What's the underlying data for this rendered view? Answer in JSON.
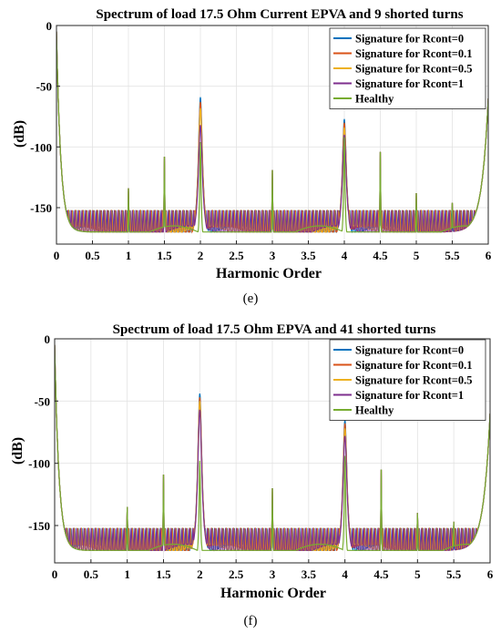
{
  "chart_data": [
    {
      "type": "line",
      "title": "Spectrum of load 17.5 Ohm Current EPVA and 9 shorted turns",
      "caption": "(e)",
      "xlabel": "Harmonic Order",
      "ylabel": "(dB)",
      "xlim": [
        0,
        6
      ],
      "ylim": [
        -180,
        0
      ],
      "xticks": [
        "0",
        "0.5",
        "1",
        "1.5",
        "2",
        "2.5",
        "3",
        "3.5",
        "4",
        "4.5",
        "5",
        "5.5",
        "6"
      ],
      "yticks": [
        "0",
        "-50",
        "-100",
        "-150"
      ],
      "grid": true,
      "legend": "top-right",
      "floor": -150,
      "peaks_common": [
        [
          1,
          -134
        ],
        [
          1.5,
          -108
        ],
        [
          3,
          -119
        ],
        [
          4.5,
          -104
        ],
        [
          5,
          -138
        ],
        [
          5.5,
          -146
        ]
      ],
      "series": [
        {
          "name": "Signature for Rcont=0",
          "color": "#0072BD",
          "peaks": [
            [
              2,
              -59
            ],
            [
              4,
              -77
            ]
          ]
        },
        {
          "name": "Signature for Rcont=0.1",
          "color": "#D95319",
          "peaks": [
            [
              2,
              -63
            ],
            [
              4,
              -80
            ]
          ]
        },
        {
          "name": "Signature for Rcont=0.5",
          "color": "#EDB120",
          "peaks": [
            [
              2,
              -68
            ],
            [
              4,
              -84
            ]
          ]
        },
        {
          "name": "Signature for Rcont=1",
          "color": "#7E2F8E",
          "peaks": [
            [
              2,
              -82
            ],
            [
              4,
              -90
            ]
          ]
        },
        {
          "name": "Healthy",
          "color": "#77AC30",
          "peaks": [
            [
              2,
              -96
            ],
            [
              4,
              -92
            ]
          ]
        }
      ]
    },
    {
      "type": "line",
      "title": "Spectrum of load 17.5 Ohm EPVA and 41 shorted turns",
      "caption": "(f)",
      "xlabel": "Harmonic Order",
      "ylabel": "(dB)",
      "xlim": [
        0,
        6
      ],
      "ylim": [
        -180,
        0
      ],
      "xticks": [
        "0",
        "0.5",
        "1",
        "1.5",
        "2",
        "2.5",
        "3",
        "3.5",
        "4",
        "4.5",
        "5",
        "5.5",
        "6"
      ],
      "yticks": [
        "0",
        "-50",
        "-100",
        "-150"
      ],
      "grid": true,
      "legend": "top-right",
      "floor": -150,
      "peaks_common": [
        [
          1,
          -135
        ],
        [
          1.5,
          -109
        ],
        [
          3,
          -120
        ],
        [
          4.5,
          -105
        ],
        [
          5,
          -140
        ],
        [
          5.5,
          -147
        ]
      ],
      "series": [
        {
          "name": "Signature for Rcont=0",
          "color": "#0072BD",
          "peaks": [
            [
              2,
              -44
            ],
            [
              4,
              -65
            ]
          ]
        },
        {
          "name": "Signature for Rcont=0.1",
          "color": "#D95319",
          "peaks": [
            [
              2,
              -47
            ],
            [
              4,
              -68
            ]
          ]
        },
        {
          "name": "Signature for Rcont=0.5",
          "color": "#EDB120",
          "peaks": [
            [
              2,
              -50
            ],
            [
              4,
              -72
            ]
          ]
        },
        {
          "name": "Signature for Rcont=1",
          "color": "#7E2F8E",
          "peaks": [
            [
              2,
              -57
            ],
            [
              4,
              -78
            ]
          ]
        },
        {
          "name": "Healthy",
          "color": "#77AC30",
          "peaks": [
            [
              2,
              -98
            ],
            [
              4,
              -94
            ]
          ]
        }
      ]
    }
  ]
}
